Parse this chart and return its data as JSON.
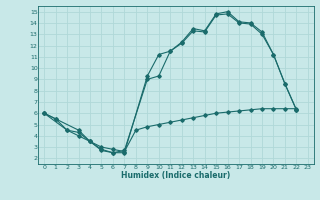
{
  "xlabel": "Humidex (Indice chaleur)",
  "bg_color": "#c8e8e8",
  "line_color": "#1a6b6b",
  "grid_color": "#b0d8d8",
  "xlim": [
    -0.5,
    23.5
  ],
  "ylim": [
    1.5,
    15.5
  ],
  "xticks": [
    0,
    1,
    2,
    3,
    4,
    5,
    6,
    7,
    8,
    9,
    10,
    11,
    12,
    13,
    14,
    15,
    16,
    17,
    18,
    19,
    20,
    21,
    22,
    23
  ],
  "yticks": [
    2,
    3,
    4,
    5,
    6,
    7,
    8,
    9,
    10,
    11,
    12,
    13,
    14,
    15
  ],
  "line1_x": [
    0,
    1,
    3,
    4,
    5,
    6,
    7,
    9,
    10,
    11,
    12,
    13,
    14,
    15,
    16,
    17,
    18,
    19,
    20,
    21,
    22
  ],
  "line1_y": [
    6.0,
    5.5,
    4.5,
    3.5,
    2.7,
    2.5,
    2.5,
    9.3,
    11.2,
    11.5,
    12.3,
    13.5,
    13.3,
    14.8,
    15.0,
    14.1,
    14.0,
    13.2,
    11.2,
    8.6,
    6.3
  ],
  "line2_x": [
    0,
    1,
    2,
    3,
    4,
    5,
    6,
    7,
    9,
    10,
    11,
    12,
    13,
    14,
    15,
    16,
    17,
    18,
    19,
    20,
    21,
    22
  ],
  "line2_y": [
    6.0,
    5.5,
    4.5,
    4.3,
    3.5,
    2.8,
    2.5,
    2.7,
    9.0,
    9.3,
    11.5,
    12.2,
    13.3,
    13.2,
    14.7,
    14.8,
    14.0,
    13.9,
    13.0,
    11.2,
    8.6,
    6.3
  ],
  "line3_x": [
    0,
    2,
    3,
    4,
    5,
    6,
    7,
    8,
    9,
    10,
    11,
    12,
    13,
    14,
    15,
    16,
    17,
    18,
    19,
    20,
    21,
    22
  ],
  "line3_y": [
    6.0,
    4.5,
    4.0,
    3.5,
    3.0,
    2.8,
    2.6,
    4.5,
    4.8,
    5.0,
    5.2,
    5.4,
    5.6,
    5.8,
    6.0,
    6.1,
    6.2,
    6.3,
    6.4,
    6.4,
    6.4,
    6.4
  ]
}
